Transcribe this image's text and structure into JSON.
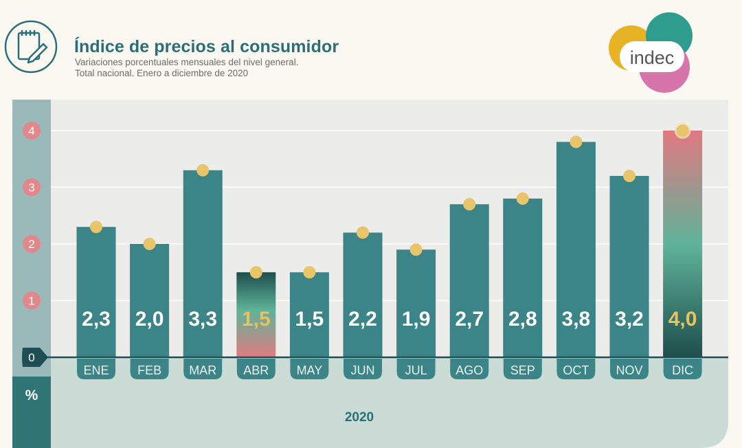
{
  "header": {
    "title": "Índice de precios al consumidor",
    "subtitle_line1": "Variaciones porcentuales mensuales del nivel general.",
    "subtitle_line2": "Total nacional. Enero a diciembre de 2020",
    "logo_text": "indec"
  },
  "chart_data": {
    "type": "bar",
    "title": "Índice de precios al consumidor",
    "subtitle": "Variaciones porcentuales mensuales del nivel general. Total nacional. Enero a diciembre de 2020",
    "categories": [
      "ENE",
      "FEB",
      "MAR",
      "ABR",
      "MAY",
      "JUN",
      "JUL",
      "AGO",
      "SEP",
      "OCT",
      "NOV",
      "DIC"
    ],
    "values": [
      2.3,
      2.0,
      3.3,
      1.5,
      1.5,
      2.2,
      1.9,
      2.7,
      2.8,
      3.8,
      3.2,
      4.0
    ],
    "data_labels": [
      "2,3",
      "2,0",
      "3,3",
      "1,5",
      "1,5",
      "2,2",
      "1,9",
      "2,7",
      "2,8",
      "3,8",
      "3,2",
      "4,0"
    ],
    "highlighted": [
      "ABR",
      "DIC"
    ],
    "yticks": [
      0,
      1,
      2,
      3,
      4
    ],
    "ylim": [
      0,
      4.5
    ],
    "ylabel": "%",
    "xlabel": "2020",
    "grid": true
  },
  "colors": {
    "bar": "#3b8487",
    "marker": "#e8c56b",
    "highlight_label": "#e9c25e",
    "tick_circle": "#e3888a",
    "axis_band": "#9ab9bb",
    "plot_bg": "#ecedea",
    "bottom_panel": "#cbdcd6",
    "title": "#2a6e78"
  }
}
